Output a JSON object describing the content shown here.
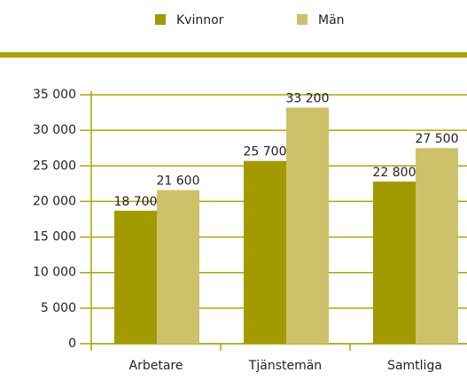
{
  "chart_data": {
    "type": "bar",
    "categories": [
      "Arbetare",
      "Tjänstemän",
      "Samtliga"
    ],
    "series": [
      {
        "name": "Kvinnor",
        "color": "#a39a00",
        "values": [
          18700,
          25700,
          22800
        ],
        "value_labels": [
          "18 700",
          "25 700",
          "22 800"
        ]
      },
      {
        "name": "Män",
        "color": "#cdc26a",
        "values": [
          21600,
          33200,
          27500
        ],
        "value_labels": [
          "21 600",
          "33 200",
          "27 500"
        ]
      }
    ],
    "ylim": [
      0,
      35000
    ],
    "yticks": [
      {
        "value": 0,
        "label": "0"
      },
      {
        "value": 5000,
        "label": "5 000"
      },
      {
        "value": 10000,
        "label": "10 000"
      },
      {
        "value": 15000,
        "label": "15 000"
      },
      {
        "value": 20000,
        "label": "20 000"
      },
      {
        "value": 25000,
        "label": "25 000"
      },
      {
        "value": 30000,
        "label": "30 000"
      },
      {
        "value": 35000,
        "label": "35 000"
      }
    ],
    "grid": true,
    "legend": "top"
  }
}
